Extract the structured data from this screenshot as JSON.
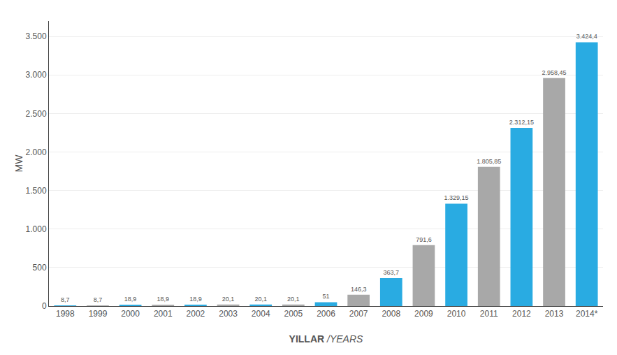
{
  "chart_data": {
    "type": "bar",
    "xlabel": "YILLAR /YEARS",
    "ylabel": "MW",
    "categories": [
      "1998",
      "1999",
      "2000",
      "2001",
      "2002",
      "2003",
      "2004",
      "2005",
      "2006",
      "2007",
      "2008",
      "2009",
      "2010",
      "2011",
      "2012",
      "2013",
      "2014*"
    ],
    "values": [
      8.7,
      8.7,
      18.9,
      18.9,
      18.9,
      20.1,
      20.1,
      20.1,
      51,
      146.3,
      363.7,
      791.6,
      1329.15,
      1805.85,
      2312.15,
      2958.45,
      3424.4
    ],
    "value_labels": [
      "8,7",
      "8,7",
      "18,9",
      "18,9",
      "18,9",
      "20,1",
      "20,1",
      "20,1",
      "51",
      "146,3",
      "363,7",
      "791,6",
      "1.329,15",
      "1.805,85",
      "2.312,15",
      "2.958,45",
      "3.424,4"
    ],
    "data_labels": true,
    "colors": [
      "#29abe2",
      "#a8a8a8",
      "#29abe2",
      "#a8a8a8",
      "#29abe2",
      "#a8a8a8",
      "#29abe2",
      "#a8a8a8",
      "#29abe2",
      "#a8a8a8",
      "#29abe2",
      "#a8a8a8",
      "#29abe2",
      "#a8a8a8",
      "#29abe2",
      "#a8a8a8",
      "#29abe2"
    ],
    "ylim": [
      0,
      3700
    ],
    "yticks": [
      0,
      500,
      {
        "value": 1000,
        "label": "1.000"
      },
      {
        "value": 1500,
        "label": "1.500"
      },
      {
        "value": 2000,
        "label": "2.000"
      },
      {
        "value": 2500,
        "label": "2.500"
      },
      {
        "value": 3000,
        "label": "3.000"
      },
      {
        "value": 3500,
        "label": "3.500"
      }
    ],
    "grid": true
  }
}
